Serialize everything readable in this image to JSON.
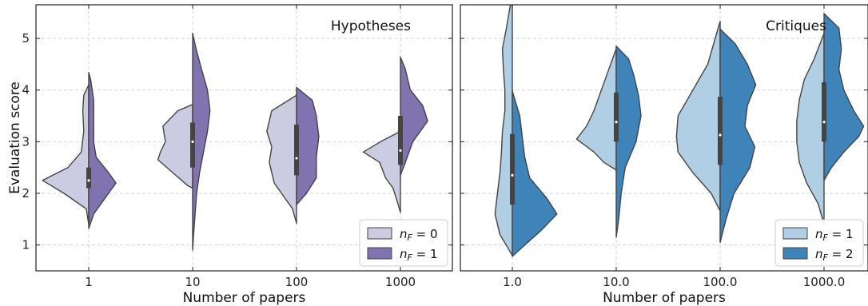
{
  "chart_data": [
    {
      "type": "violin",
      "title": "Hypotheses",
      "xlabel": "Number of papers",
      "ylabel": "Evaluation score",
      "categories": [
        "1",
        "10",
        "100",
        "1000"
      ],
      "ylim": [
        0.5,
        5.65
      ],
      "yticks": [
        1,
        2,
        3,
        4,
        5
      ],
      "grid": true,
      "legend": {
        "position": "bottom-right",
        "entries": [
          {
            "var": "n",
            "sub": "F",
            "rest": " = 0",
            "color": "#cbcbe2"
          },
          {
            "var": "n",
            "sub": "F",
            "rest": " = 1",
            "color": "#8173b0"
          }
        ]
      },
      "series": [
        {
          "name": "nF=0",
          "color": "#cbcbe2",
          "violins": [
            {
              "ymin": 1.4,
              "ymax": 4.1,
              "profile": [
                [
                  1.4,
                  0.0
                ],
                [
                  1.7,
                  0.05
                ],
                [
                  2.0,
                  0.5
                ],
                [
                  2.25,
                  0.93
                ],
                [
                  2.5,
                  0.42
                ],
                [
                  2.8,
                  0.15
                ],
                [
                  3.2,
                  0.1
                ],
                [
                  3.6,
                  0.12
                ],
                [
                  3.9,
                  0.1
                ],
                [
                  4.1,
                  0.0
                ]
              ]
            },
            {
              "ymin": 2.1,
              "ymax": 3.72,
              "profile": [
                [
                  2.1,
                  0.0
                ],
                [
                  2.15,
                  0.1
                ],
                [
                  2.4,
                  0.4
                ],
                [
                  2.65,
                  0.7
                ],
                [
                  2.8,
                  0.65
                ],
                [
                  3.0,
                  0.55
                ],
                [
                  3.3,
                  0.6
                ],
                [
                  3.6,
                  0.3
                ],
                [
                  3.72,
                  0.0
                ]
              ]
            },
            {
              "ymin": 1.42,
              "ymax": 3.9,
              "profile": [
                [
                  1.42,
                  0.0
                ],
                [
                  1.7,
                  0.08
                ],
                [
                  2.2,
                  0.45
                ],
                [
                  2.6,
                  0.55
                ],
                [
                  2.9,
                  0.5
                ],
                [
                  3.2,
                  0.6
                ],
                [
                  3.6,
                  0.5
                ],
                [
                  3.9,
                  0.0
                ]
              ]
            },
            {
              "ymin": 1.63,
              "ymax": 3.2,
              "profile": [
                [
                  1.63,
                  0.0
                ],
                [
                  1.8,
                  0.05
                ],
                [
                  2.1,
                  0.15
                ],
                [
                  2.3,
                  0.3
                ],
                [
                  2.6,
                  0.42
                ],
                [
                  2.8,
                  0.75
                ],
                [
                  3.0,
                  0.4
                ],
                [
                  3.2,
                  0.0
                ]
              ]
            }
          ]
        },
        {
          "name": "nF=1",
          "color": "#8173b0",
          "violins": [
            {
              "ymin": 1.32,
              "ymax": 4.34,
              "profile": [
                [
                  1.32,
                  0.0
                ],
                [
                  1.6,
                  0.1
                ],
                [
                  2.0,
                  0.4
                ],
                [
                  2.2,
                  0.55
                ],
                [
                  2.4,
                  0.4
                ],
                [
                  2.7,
                  0.15
                ],
                [
                  3.0,
                  0.1
                ],
                [
                  3.4,
                  0.1
                ],
                [
                  3.8,
                  0.1
                ],
                [
                  4.2,
                  0.04
                ],
                [
                  4.34,
                  0.0
                ]
              ]
            },
            {
              "ymin": 0.9,
              "ymax": 5.1,
              "profile": [
                [
                  0.9,
                  0.0
                ],
                [
                  1.2,
                  0.02
                ],
                [
                  1.6,
                  0.05
                ],
                [
                  2.0,
                  0.08
                ],
                [
                  2.4,
                  0.14
                ],
                [
                  2.8,
                  0.22
                ],
                [
                  3.2,
                  0.3
                ],
                [
                  3.6,
                  0.35
                ],
                [
                  4.0,
                  0.3
                ],
                [
                  4.4,
                  0.18
                ],
                [
                  4.8,
                  0.07
                ],
                [
                  5.1,
                  0.0
                ]
              ]
            },
            {
              "ymin": 1.78,
              "ymax": 4.05,
              "profile": [
                [
                  1.78,
                  0.0
                ],
                [
                  2.0,
                  0.2
                ],
                [
                  2.3,
                  0.4
                ],
                [
                  2.7,
                  0.4
                ],
                [
                  3.1,
                  0.45
                ],
                [
                  3.5,
                  0.4
                ],
                [
                  3.8,
                  0.32
                ],
                [
                  4.05,
                  0.0
                ]
              ]
            },
            {
              "ymin": 2.35,
              "ymax": 4.64,
              "profile": [
                [
                  2.35,
                  0.0
                ],
                [
                  2.6,
                  0.1
                ],
                [
                  3.0,
                  0.25
                ],
                [
                  3.4,
                  0.55
                ],
                [
                  3.7,
                  0.45
                ],
                [
                  4.0,
                  0.2
                ],
                [
                  4.4,
                  0.1
                ],
                [
                  4.64,
                  0.0
                ]
              ]
            }
          ]
        }
      ],
      "boxes": [
        {
          "q1": 2.1,
          "median": 2.25,
          "q3": 2.5
        },
        {
          "q1": 2.5,
          "median": 3.0,
          "q3": 3.37
        },
        {
          "q1": 2.35,
          "median": 2.68,
          "q3": 3.33
        },
        {
          "q1": 2.55,
          "median": 2.83,
          "q3": 3.5
        }
      ]
    },
    {
      "type": "violin",
      "title": "Critiques",
      "xlabel": "Number of papers",
      "ylabel": "",
      "categories": [
        "1.0",
        "10.0",
        "100.0",
        "1000.0"
      ],
      "ylim": [
        0.5,
        5.65
      ],
      "yticks": [
        1,
        2,
        3,
        4,
        5
      ],
      "grid": true,
      "legend": {
        "position": "bottom-right",
        "entries": [
          {
            "var": "n",
            "sub": "F",
            "rest": " = 1",
            "color": "#b0cfe4"
          },
          {
            "var": "n",
            "sub": "F",
            "rest": " = 2",
            "color": "#3f84b9"
          }
        ]
      },
      "series": [
        {
          "name": "nF=1",
          "color": "#b0cfe4",
          "violins": [
            {
              "ymin": 0.8,
              "ymax": 5.7,
              "profile": [
                [
                  0.8,
                  0.0
                ],
                [
                  1.2,
                  0.25
                ],
                [
                  1.6,
                  0.35
                ],
                [
                  2.0,
                  0.3
                ],
                [
                  2.4,
                  0.25
                ],
                [
                  2.8,
                  0.22
                ],
                [
                  3.2,
                  0.2
                ],
                [
                  3.6,
                  0.15
                ],
                [
                  4.0,
                  0.15
                ],
                [
                  4.4,
                  0.18
                ],
                [
                  4.8,
                  0.2
                ],
                [
                  5.2,
                  0.12
                ],
                [
                  5.7,
                  0.03
                ]
              ]
            },
            {
              "ymin": 2.45,
              "ymax": 4.8,
              "profile": [
                [
                  2.45,
                  0.0
                ],
                [
                  2.6,
                  0.25
                ],
                [
                  2.8,
                  0.45
                ],
                [
                  3.05,
                  0.8
                ],
                [
                  3.3,
                  0.6
                ],
                [
                  3.6,
                  0.45
                ],
                [
                  4.0,
                  0.3
                ],
                [
                  4.4,
                  0.15
                ],
                [
                  4.8,
                  0.0
                ]
              ]
            },
            {
              "ymin": 1.66,
              "ymax": 5.33,
              "profile": [
                [
                  1.66,
                  0.0
                ],
                [
                  2.0,
                  0.18
                ],
                [
                  2.4,
                  0.55
                ],
                [
                  2.8,
                  0.85
                ],
                [
                  3.1,
                  0.88
                ],
                [
                  3.5,
                  0.85
                ],
                [
                  4.0,
                  0.55
                ],
                [
                  4.5,
                  0.25
                ],
                [
                  5.0,
                  0.1
                ],
                [
                  5.33,
                  0.0
                ]
              ]
            },
            {
              "ymin": 1.4,
              "ymax": 5.1,
              "profile": [
                [
                  1.4,
                  0.0
                ],
                [
                  1.8,
                  0.12
                ],
                [
                  2.2,
                  0.35
                ],
                [
                  2.6,
                  0.5
                ],
                [
                  3.0,
                  0.55
                ],
                [
                  3.4,
                  0.55
                ],
                [
                  3.8,
                  0.5
                ],
                [
                  4.2,
                  0.4
                ],
                [
                  4.6,
                  0.2
                ],
                [
                  5.1,
                  0.0
                ]
              ]
            }
          ]
        },
        {
          "name": "nF=2",
          "color": "#3f84b9",
          "violins": [
            {
              "ymin": 0.78,
              "ymax": 3.98,
              "profile": [
                [
                  0.78,
                  0.0
                ],
                [
                  1.0,
                  0.25
                ],
                [
                  1.3,
                  0.6
                ],
                [
                  1.6,
                  0.9
                ],
                [
                  1.9,
                  0.7
                ],
                [
                  2.3,
                  0.35
                ],
                [
                  2.7,
                  0.25
                ],
                [
                  3.1,
                  0.2
                ],
                [
                  3.5,
                  0.15
                ],
                [
                  3.98,
                  0.0
                ]
              ]
            },
            {
              "ymin": 1.15,
              "ymax": 4.85,
              "profile": [
                [
                  1.15,
                  0.0
                ],
                [
                  1.5,
                  0.05
                ],
                [
                  2.0,
                  0.1
                ],
                [
                  2.5,
                  0.18
                ],
                [
                  3.0,
                  0.4
                ],
                [
                  3.5,
                  0.5
                ],
                [
                  3.9,
                  0.45
                ],
                [
                  4.3,
                  0.35
                ],
                [
                  4.6,
                  0.25
                ],
                [
                  4.85,
                  0.0
                ]
              ]
            },
            {
              "ymin": 1.05,
              "ymax": 5.18,
              "profile": [
                [
                  1.05,
                  0.0
                ],
                [
                  1.5,
                  0.12
                ],
                [
                  2.0,
                  0.28
                ],
                [
                  2.5,
                  0.6
                ],
                [
                  2.9,
                  0.7
                ],
                [
                  3.3,
                  0.5
                ],
                [
                  3.7,
                  0.55
                ],
                [
                  4.1,
                  0.72
                ],
                [
                  4.5,
                  0.55
                ],
                [
                  4.9,
                  0.3
                ],
                [
                  5.18,
                  0.0
                ]
              ]
            },
            {
              "ymin": 2.25,
              "ymax": 5.48,
              "profile": [
                [
                  2.25,
                  0.0
                ],
                [
                  2.5,
                  0.15
                ],
                [
                  2.8,
                  0.4
                ],
                [
                  3.1,
                  0.7
                ],
                [
                  3.3,
                  0.8
                ],
                [
                  3.6,
                  0.6
                ],
                [
                  4.0,
                  0.4
                ],
                [
                  4.4,
                  0.3
                ],
                [
                  4.8,
                  0.35
                ],
                [
                  5.2,
                  0.3
                ],
                [
                  5.48,
                  0.0
                ]
              ]
            }
          ]
        }
      ],
      "boxes": [
        {
          "q1": 1.78,
          "median": 2.35,
          "q3": 3.15
        },
        {
          "q1": 3.0,
          "median": 3.38,
          "q3": 3.95
        },
        {
          "q1": 2.55,
          "median": 3.13,
          "q3": 3.87
        },
        {
          "q1": 3.0,
          "median": 3.38,
          "q3": 4.15
        }
      ]
    }
  ]
}
